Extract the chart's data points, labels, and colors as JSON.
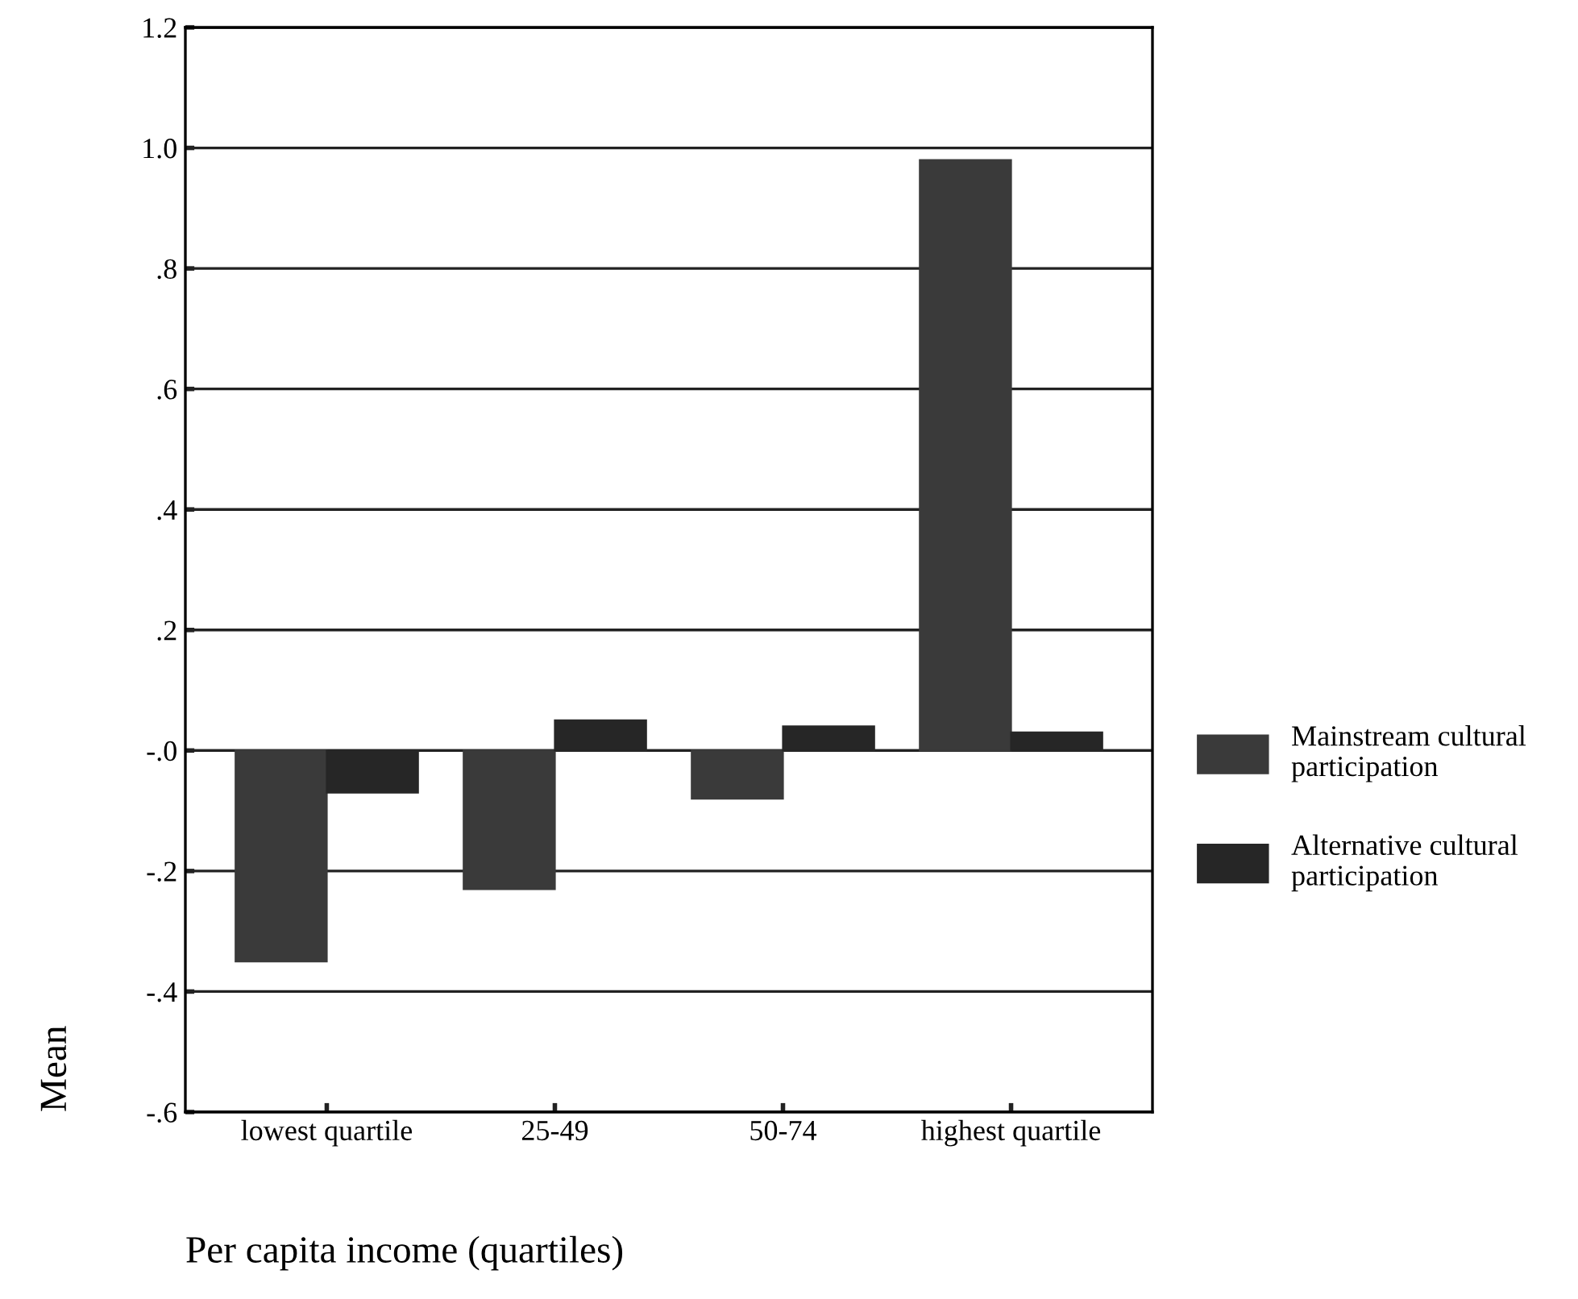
{
  "chart_data": {
    "type": "bar",
    "xlabel": "Per capita income (quartiles)",
    "ylabel": "Mean",
    "categories": [
      "lowest quartile",
      "25-49",
      "50-74",
      "highest quartile"
    ],
    "series": [
      {
        "name": "Mainstream cultural\nparticipation",
        "color": "#3a3a3a",
        "values": [
          -0.35,
          -0.23,
          -0.08,
          0.98
        ]
      },
      {
        "name": "Alternative cultural\nparticipation",
        "color": "#262626",
        "values": [
          -0.07,
          0.05,
          0.04,
          0.03
        ]
      }
    ],
    "ylim": [
      -0.6,
      1.2
    ],
    "yticks": [
      {
        "value": 1.2,
        "label": "1.2"
      },
      {
        "value": 1.0,
        "label": "1.0"
      },
      {
        "value": 0.8,
        "label": ".8"
      },
      {
        "value": 0.6,
        "label": ".6"
      },
      {
        "value": 0.4,
        "label": ".4"
      },
      {
        "value": 0.2,
        "label": ".2"
      },
      {
        "value": 0,
        "label": "-.0"
      },
      {
        "value": -0.2,
        "label": "-.2"
      },
      {
        "value": -0.4,
        "label": "-.4"
      },
      {
        "value": -0.6,
        "label": "-.6"
      }
    ],
    "grid": "y",
    "legend": "right"
  }
}
